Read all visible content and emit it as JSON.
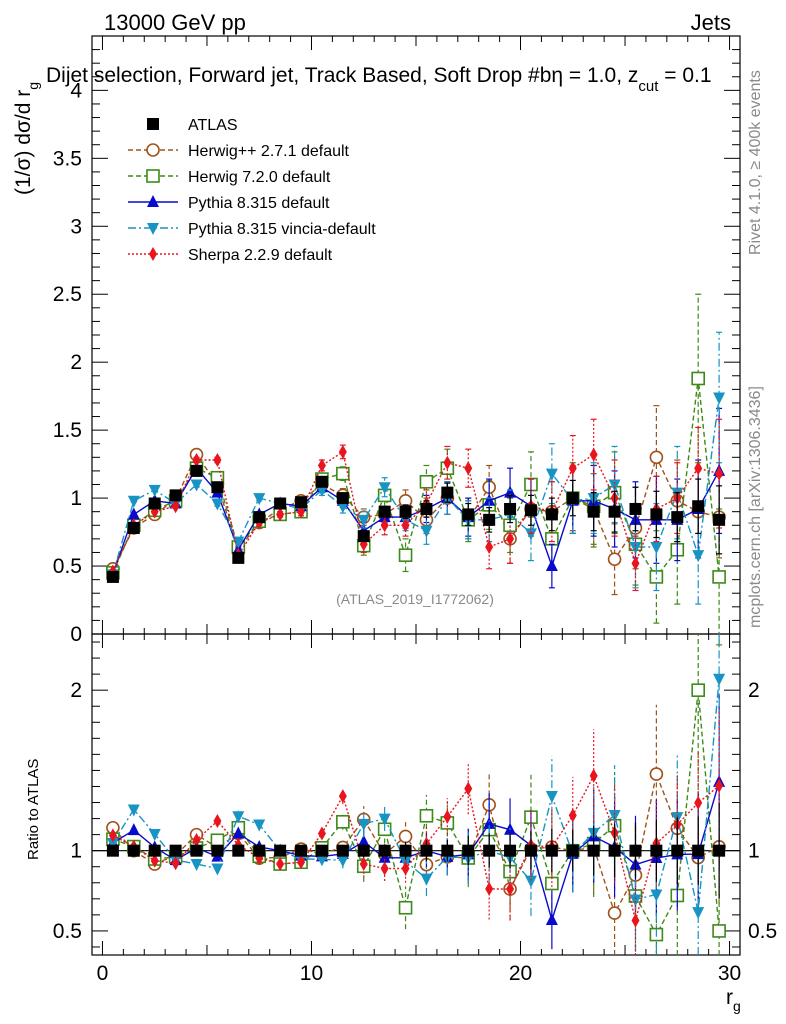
{
  "chart_data": {
    "type": "line",
    "header_left": "13000 GeV pp",
    "header_right": "Jets",
    "title_main": "Dijet selection, Forward jet, Track Based, Soft Drop #b",
    "title_eta": "η = 1.0, z",
    "title_sub": "cut",
    "title_end": " = 0.1",
    "ylabel_main": "(1/σ) dσ/d r",
    "ylabel_sub": "g",
    "ylabel_ratio": "Ratio to ATLAS",
    "xlabel_main": "r",
    "xlabel_sub": "g",
    "watermark": "(ATLAS_2019_I1772062)",
    "side_rivet": "Rivet 4.1.0, ≥ 400k events",
    "side_mcplots": "mcplots.cern.ch [arXiv:1306.3436]",
    "xlim": [
      -0.5,
      30.5
    ],
    "ylim_main": [
      0,
      4.4
    ],
    "ylim_ratio": [
      0.35,
      2.35
    ],
    "x_ticks": [
      "0",
      "10",
      "20",
      "30"
    ],
    "y_ticks_main": [
      "0",
      "0.5",
      "1",
      "1.5",
      "2",
      "2.5",
      "3",
      "3.5",
      "4"
    ],
    "y_ticks_ratio": [
      "0.5",
      "1",
      "2"
    ],
    "x": [
      0.5,
      1.5,
      2.5,
      3.5,
      4.5,
      5.5,
      6.5,
      7.5,
      8.5,
      9.5,
      10.5,
      11.5,
      12.5,
      13.5,
      14.5,
      15.5,
      16.5,
      17.5,
      18.5,
      19.5,
      20.5,
      21.5,
      22.5,
      23.5,
      24.5,
      25.5,
      26.5,
      27.5,
      28.5,
      29.5
    ],
    "series": [
      {
        "name": "ATLAS",
        "color": "#000000",
        "marker": "square-filled",
        "line": "none",
        "values": [
          0.42,
          0.78,
          0.96,
          1.02,
          1.2,
          1.08,
          0.56,
          0.86,
          0.96,
          0.97,
          1.12,
          1.0,
          0.72,
          0.9,
          0.9,
          0.92,
          1.04,
          0.88,
          0.84,
          0.92,
          0.91,
          0.88,
          1.0,
          0.9,
          0.9,
          0.92,
          0.88,
          0.86,
          0.94,
          0.84
        ],
        "err": [
          0.01,
          0.01,
          0.01,
          0.01,
          0.01,
          0.01,
          0.01,
          0.01,
          0.01,
          0.02,
          0.02,
          0.02,
          0.03,
          0.03,
          0.05,
          0.06,
          0.07,
          0.08,
          0.09,
          0.1,
          0.11,
          0.12,
          0.13,
          0.14,
          0.15,
          0.16,
          0.17,
          0.18,
          0.2,
          0.25
        ]
      },
      {
        "name": "Herwig++ 2.7.1 default",
        "color": "#a0521a",
        "marker": "circle-open",
        "line": "dashed",
        "values": [
          0.48,
          0.78,
          0.88,
          0.99,
          1.32,
          1.1,
          0.62,
          0.82,
          0.92,
          0.98,
          1.1,
          1.02,
          0.86,
          0.88,
          0.98,
          0.84,
          1.0,
          0.84,
          1.08,
          0.7,
          0.92,
          0.9,
          1.0,
          0.92,
          0.55,
          0.78,
          1.3,
          0.98,
          0.9,
          0.86
        ],
        "err": [
          0.01,
          0.01,
          0.01,
          0.01,
          0.02,
          0.02,
          0.02,
          0.02,
          0.02,
          0.03,
          0.04,
          0.05,
          0.06,
          0.06,
          0.08,
          0.1,
          0.12,
          0.14,
          0.16,
          0.18,
          0.2,
          0.22,
          0.24,
          0.26,
          0.26,
          0.3,
          0.38,
          0.3,
          0.3,
          0.3
        ]
      },
      {
        "name": "Herwig 7.2.0 default",
        "color": "#3c8a18",
        "marker": "square-open",
        "line": "dashed",
        "values": [
          0.45,
          0.8,
          0.91,
          0.98,
          1.22,
          1.15,
          0.64,
          0.83,
          0.88,
          0.9,
          1.14,
          1.18,
          0.65,
          1.02,
          0.58,
          1.12,
          1.22,
          0.84,
          0.95,
          0.8,
          1.1,
          0.7,
          1.0,
          0.94,
          1.04,
          0.66,
          0.42,
          0.62,
          1.88,
          0.42
        ],
        "err": [
          0.01,
          0.01,
          0.01,
          0.01,
          0.02,
          0.02,
          0.02,
          0.02,
          0.02,
          0.03,
          0.04,
          0.05,
          0.07,
          0.08,
          0.12,
          0.12,
          0.14,
          0.16,
          0.18,
          0.2,
          0.24,
          0.22,
          0.26,
          0.3,
          0.3,
          0.3,
          0.34,
          0.4,
          0.62,
          0.5
        ]
      },
      {
        "name": "Pythia 8.315 default",
        "color": "#0a0acc",
        "marker": "triangle-up",
        "line": "solid",
        "values": [
          0.44,
          0.88,
          0.98,
          0.96,
          1.22,
          1.04,
          0.62,
          0.88,
          0.96,
          0.94,
          1.08,
          0.98,
          0.76,
          0.86,
          0.86,
          0.92,
          1.0,
          0.86,
          0.98,
          1.04,
          0.94,
          0.5,
          0.98,
          0.98,
          0.92,
          0.84,
          0.84,
          0.84,
          0.92,
          1.2
        ],
        "err": [
          0.01,
          0.01,
          0.01,
          0.01,
          0.02,
          0.02,
          0.02,
          0.02,
          0.02,
          0.03,
          0.04,
          0.05,
          0.06,
          0.07,
          0.08,
          0.1,
          0.12,
          0.14,
          0.16,
          0.18,
          0.2,
          0.16,
          0.24,
          0.26,
          0.28,
          0.28,
          0.32,
          0.3,
          0.36,
          0.46
        ]
      },
      {
        "name": "Pythia 8.315 vincia-default",
        "color": "#1894c4",
        "marker": "triangle-down",
        "line": "dashdot",
        "values": [
          0.44,
          0.98,
          1.06,
          0.96,
          1.1,
          0.96,
          0.68,
          1.0,
          0.96,
          0.92,
          1.06,
          0.94,
          0.84,
          1.08,
          0.84,
          0.76,
          1.0,
          0.84,
          0.84,
          0.88,
          0.74,
          1.18,
          0.98,
          1.0,
          1.1,
          0.64,
          0.64,
          1.04,
          0.58,
          1.74
        ],
        "err": [
          0.01,
          0.01,
          0.01,
          0.01,
          0.02,
          0.02,
          0.02,
          0.02,
          0.02,
          0.03,
          0.04,
          0.05,
          0.06,
          0.07,
          0.08,
          0.1,
          0.12,
          0.14,
          0.16,
          0.18,
          0.2,
          0.22,
          0.24,
          0.26,
          0.28,
          0.3,
          0.32,
          0.34,
          0.36,
          0.48
        ]
      },
      {
        "name": "Sherpa 2.2.9 default",
        "color": "#e8141e",
        "marker": "diamond",
        "line": "dotted",
        "values": [
          0.46,
          0.8,
          0.9,
          0.94,
          1.28,
          1.28,
          0.58,
          0.82,
          0.88,
          0.9,
          1.24,
          1.34,
          0.66,
          0.8,
          0.8,
          0.96,
          1.26,
          1.22,
          0.64,
          0.7,
          0.94,
          0.9,
          1.22,
          1.32,
          1.0,
          0.52,
          0.92,
          1.0,
          1.22,
          1.18
        ],
        "err": [
          0.01,
          0.01,
          0.01,
          0.01,
          0.02,
          0.02,
          0.02,
          0.02,
          0.02,
          0.03,
          0.04,
          0.05,
          0.06,
          0.07,
          0.08,
          0.1,
          0.12,
          0.14,
          0.16,
          0.18,
          0.2,
          0.22,
          0.24,
          0.26,
          0.28,
          0.2,
          0.24,
          0.26,
          0.3,
          0.4
        ]
      }
    ]
  }
}
